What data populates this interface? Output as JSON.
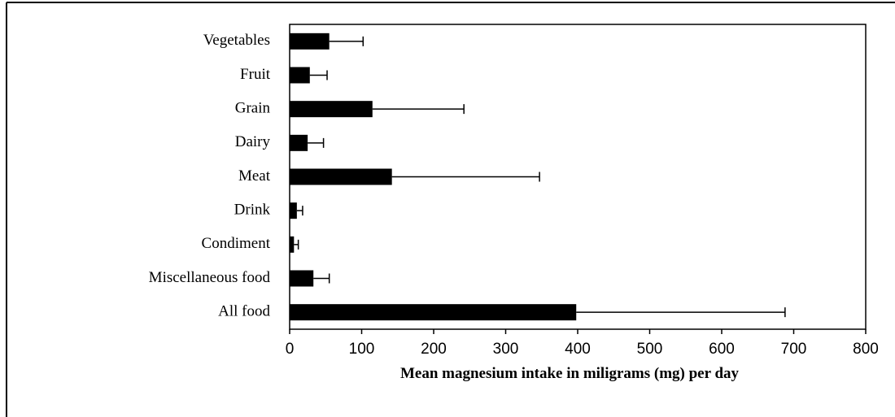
{
  "chart_data": {
    "type": "bar",
    "orientation": "horizontal",
    "x_label": "Mean magnesium intake in miligrams (mg) per day",
    "categories": [
      "Vegetables",
      "Fruit",
      "Grain",
      "Dairy",
      "Meat",
      "Drink",
      "Condiment",
      "Miscellaneous food",
      "All food"
    ],
    "values": [
      55,
      28,
      115,
      25,
      142,
      10,
      6,
      33,
      398
    ],
    "errors": [
      47,
      24,
      127,
      22,
      205,
      8,
      6,
      22,
      290
    ],
    "color": "#000000",
    "xlim": [
      0,
      800
    ],
    "xticks": [
      0,
      100,
      200,
      300,
      400,
      500,
      600,
      700,
      800
    ]
  }
}
